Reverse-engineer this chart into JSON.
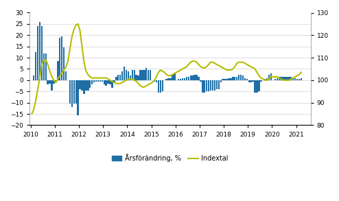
{
  "bar_color": "#1f6fa5",
  "line_color": "#b5bd00",
  "background_color": "#ffffff",
  "grid_color": "#d0d0d0",
  "left_ylim": [
    -20,
    30
  ],
  "right_ylim": [
    80,
    130
  ],
  "left_yticks": [
    -20,
    -15,
    -10,
    -5,
    0,
    5,
    10,
    15,
    20,
    25,
    30
  ],
  "right_yticks": [
    80,
    90,
    100,
    110,
    120,
    130
  ],
  "legend_labels": [
    "Årsförändring, %",
    "Indextal"
  ],
  "bar_data": [
    0.0,
    2.0,
    12.5,
    24.0,
    26.0,
    24.0,
    12.0,
    12.0,
    -2.0,
    -1.5,
    -4.5,
    -1.5,
    -0.5,
    8.5,
    19.0,
    19.5,
    14.5,
    4.0,
    0.0,
    -10.5,
    -12.0,
    -10.5,
    -10.5,
    -15.5,
    -4.0,
    -4.5,
    -6.0,
    -4.5,
    -4.5,
    -3.5,
    -2.0,
    -1.0,
    -0.5,
    -0.5,
    -0.5,
    -0.5,
    -2.0,
    -2.5,
    -1.5,
    -2.0,
    -3.5,
    -1.0,
    1.5,
    2.5,
    2.5,
    4.0,
    6.0,
    4.5,
    4.0,
    2.0,
    4.5,
    4.5,
    2.5,
    2.0,
    4.5,
    4.5,
    4.5,
    5.5,
    4.5,
    4.5,
    0.0,
    -0.5,
    -1.0,
    -5.5,
    -5.5,
    -5.0,
    0.0,
    0.5,
    1.0,
    1.0,
    2.5,
    3.0,
    0.0,
    0.5,
    0.5,
    1.0,
    1.0,
    1.5,
    1.5,
    2.0,
    2.0,
    2.5,
    2.5,
    1.5,
    -0.5,
    -5.5,
    -5.5,
    -5.0,
    -5.0,
    -4.5,
    -4.5,
    -4.5,
    -4.0,
    -4.0,
    -1.0,
    0.5,
    0.5,
    0.5,
    1.0,
    1.0,
    1.5,
    1.5,
    1.5,
    2.5,
    2.5,
    2.0,
    1.0,
    0.5,
    -1.0,
    -1.0,
    -0.5,
    -5.5,
    -5.5,
    -5.0,
    -0.5,
    0.0,
    0.5,
    1.0,
    2.5,
    3.0,
    0.0,
    0.5,
    1.0,
    1.5,
    1.5,
    1.5,
    1.5,
    1.5,
    1.5,
    1.5,
    1.0,
    1.0,
    0.5,
    0.5,
    1.0
  ],
  "line_data": [
    85.0,
    87.0,
    91.0,
    96.0,
    101.0,
    107.0,
    109.0,
    109.0,
    107.0,
    104.0,
    101.5,
    100.0,
    99.0,
    100.5,
    102.0,
    103.0,
    104.5,
    106.0,
    108.5,
    114.0,
    119.5,
    122.5,
    124.5,
    125.0,
    122.0,
    115.0,
    108.0,
    104.0,
    102.5,
    101.5,
    101.0,
    101.0,
    101.0,
    101.0,
    101.0,
    101.0,
    101.0,
    101.0,
    100.5,
    100.0,
    99.5,
    99.0,
    98.5,
    98.5,
    98.5,
    99.0,
    99.5,
    100.0,
    100.5,
    100.5,
    100.5,
    100.0,
    99.5,
    98.5,
    97.5,
    97.0,
    97.0,
    97.5,
    98.0,
    98.5,
    99.0,
    100.0,
    101.5,
    103.5,
    104.5,
    104.0,
    103.5,
    102.5,
    102.0,
    102.0,
    102.5,
    103.0,
    103.5,
    104.0,
    104.5,
    105.0,
    105.5,
    106.0,
    107.0,
    108.0,
    108.5,
    108.5,
    108.0,
    107.0,
    106.0,
    105.5,
    105.5,
    106.0,
    107.0,
    108.0,
    108.0,
    107.5,
    107.0,
    106.5,
    106.0,
    105.5,
    105.0,
    104.5,
    104.5,
    104.5,
    105.0,
    106.0,
    107.5,
    108.0,
    108.0,
    108.0,
    107.5,
    107.0,
    106.5,
    106.0,
    105.5,
    105.0,
    103.5,
    102.0,
    101.0,
    100.5,
    100.0,
    100.0,
    100.5,
    101.5,
    101.5,
    101.5,
    101.5,
    101.0,
    100.5,
    100.0,
    100.0,
    100.0,
    100.0,
    100.5,
    101.0,
    101.5,
    102.0,
    102.5,
    103.5
  ],
  "n_months": 135,
  "start_year": 2010,
  "start_month": 1
}
